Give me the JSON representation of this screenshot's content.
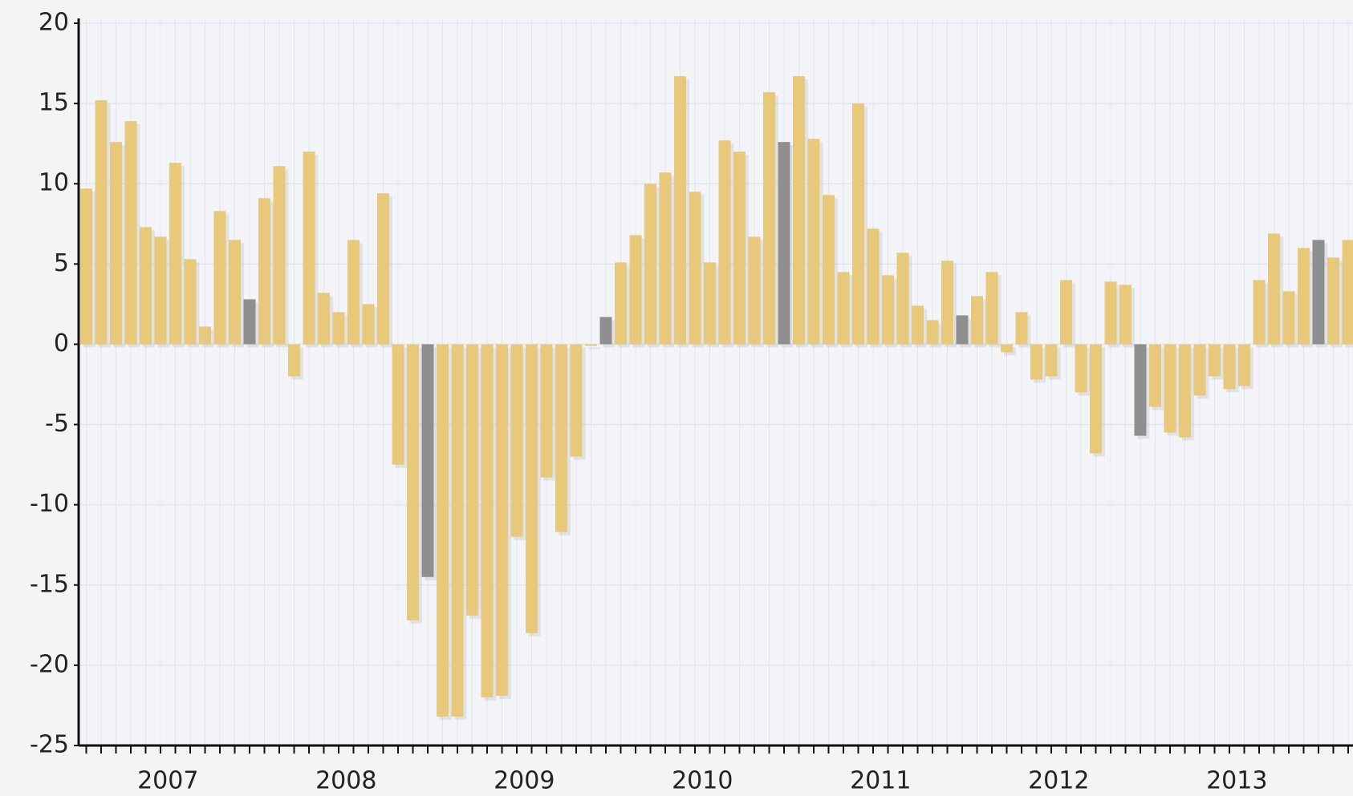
{
  "chart_data": {
    "type": "bar",
    "categories": [
      null,
      null,
      null,
      null,
      null,
      null,
      null,
      null,
      null,
      null,
      null,
      null,
      null,
      null,
      null,
      null,
      null,
      null,
      null,
      null,
      null,
      null,
      null,
      null,
      null,
      null,
      null,
      null,
      null,
      null,
      null,
      null,
      null,
      null,
      null,
      null,
      null,
      null,
      null,
      null,
      null,
      null,
      null,
      null,
      null,
      null,
      null,
      null,
      null,
      null,
      null,
      null,
      null,
      null,
      null,
      null,
      null,
      null,
      null,
      null,
      null,
      null,
      null,
      null,
      null,
      null,
      null,
      null,
      null,
      null,
      null,
      null,
      null,
      null,
      null,
      null,
      null,
      null,
      null,
      null,
      null,
      null,
      null,
      null,
      null,
      null
    ],
    "values": [
      9.7,
      15.2,
      12.6,
      13.9,
      7.3,
      6.7,
      11.3,
      5.3,
      1.1,
      8.3,
      6.5,
      2.8,
      9.1,
      11.1,
      -2,
      12,
      3.2,
      2,
      6.5,
      2.5,
      9.4,
      -7.5,
      -17.2,
      -14.5,
      -23.2,
      -23.2,
      -16.9,
      -22,
      -21.9,
      -12,
      -18,
      -8.3,
      -11.7,
      -7,
      -0.1,
      1.7,
      5.1,
      6.8,
      10,
      10.7,
      16.7,
      9.5,
      5.1,
      12.7,
      12,
      6.7,
      15.7,
      12.6,
      16.7,
      12.8,
      9.3,
      4.5,
      15,
      7.2,
      4.3,
      5.7,
      2.4,
      1.5,
      5.2,
      1.8,
      3,
      4.5,
      -0.5,
      2,
      -2.2,
      -2,
      4,
      -3,
      -6.8,
      3.9,
      3.7,
      -5.7,
      -3.9,
      -5.5,
      -5.8,
      -3.2,
      -2,
      -2.8,
      -2.6,
      4,
      6.9,
      3.3,
      6,
      6.5,
      5.4,
      6.5
    ],
    "colors": [
      "#e8c87a",
      "#e8c87a",
      "#e8c87a",
      "#e8c87a",
      "#e8c87a",
      "#e8c87a",
      "#e8c87a",
      "#e8c87a",
      "#e8c87a",
      "#e8c87a",
      "#e8c87a",
      "#8f8f8f",
      "#e8c87a",
      "#e8c87a",
      "#e8c87a",
      "#e8c87a",
      "#e8c87a",
      "#e8c87a",
      "#e8c87a",
      "#e8c87a",
      "#e8c87a",
      "#e8c87a",
      "#e8c87a",
      "#8f8f8f",
      "#e8c87a",
      "#e8c87a",
      "#e8c87a",
      "#e8c87a",
      "#e8c87a",
      "#e8c87a",
      "#e8c87a",
      "#e8c87a",
      "#e8c87a",
      "#e8c87a",
      "#e8c87a",
      "#8f8f8f",
      "#e8c87a",
      "#e8c87a",
      "#e8c87a",
      "#e8c87a",
      "#e8c87a",
      "#e8c87a",
      "#e8c87a",
      "#e8c87a",
      "#e8c87a",
      "#e8c87a",
      "#e8c87a",
      "#8f8f8f",
      "#e8c87a",
      "#e8c87a",
      "#e8c87a",
      "#e8c87a",
      "#e8c87a",
      "#e8c87a",
      "#e8c87a",
      "#e8c87a",
      "#e8c87a",
      "#e8c87a",
      "#e8c87a",
      "#8f8f8f",
      "#e8c87a",
      "#e8c87a",
      "#e8c87a",
      "#e8c87a",
      "#e8c87a",
      "#e8c87a",
      "#e8c87a",
      "#e8c87a",
      "#e8c87a",
      "#e8c87a",
      "#e8c87a",
      "#8f8f8f",
      "#e8c87a",
      "#e8c87a",
      "#e8c87a",
      "#e8c87a",
      "#e8c87a",
      "#e8c87a",
      "#e8c87a",
      "#e8c87a",
      "#e8c87a",
      "#e8c87a",
      "#e8c87a",
      "#8f8f8f",
      "#e8c87a",
      "#e8c87a"
    ],
    "year_labels": [
      "2007",
      "2008",
      "2009",
      "2010",
      "2011",
      "2012",
      "2013"
    ],
    "ylim": [
      -25,
      20
    ],
    "yticks": [
      -25,
      -20,
      -15,
      -10,
      -5,
      0,
      5,
      10,
      15,
      20
    ],
    "grid": true
  }
}
